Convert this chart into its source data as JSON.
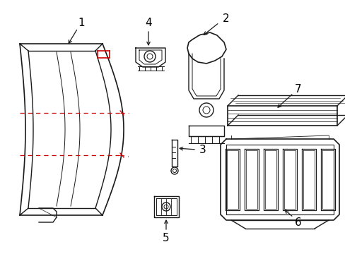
{
  "background_color": "#ffffff",
  "line_color": "#1a1a1a",
  "red_dash_color": "#cc0000",
  "label_color": "#000000",
  "fig_width": 4.89,
  "fig_height": 3.6,
  "dpi": 100,
  "font_size": 11
}
